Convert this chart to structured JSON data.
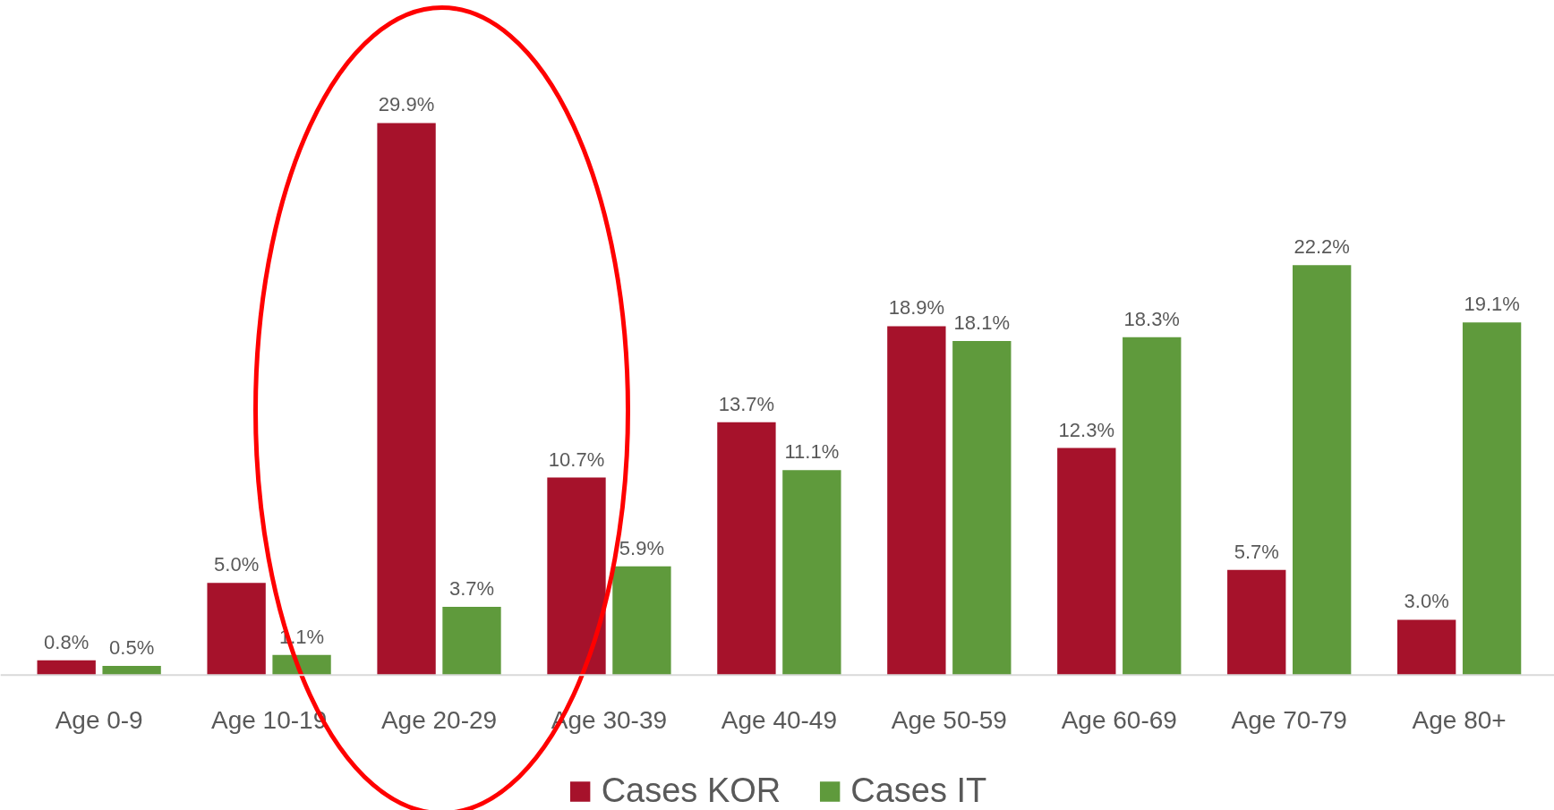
{
  "chart_data": {
    "type": "bar",
    "categories": [
      "Age 0-9",
      "Age 10-19",
      "Age 20-29",
      "Age 30-39",
      "Age 40-49",
      "Age 50-59",
      "Age 60-69",
      "Age 70-79",
      "Age 80+"
    ],
    "series": [
      {
        "name": "Cases KOR",
        "color": "#a6122b",
        "values": [
          0.8,
          5.0,
          29.9,
          10.7,
          13.7,
          18.9,
          12.3,
          5.7,
          3.0
        ],
        "value_labels": [
          "0.8%",
          "5.0%",
          "29.9%",
          "10.7%",
          "13.7%",
          "18.9%",
          "12.3%",
          "5.7%",
          "3.0%"
        ]
      },
      {
        "name": "Cases IT",
        "color": "#5f9a3c",
        "values": [
          0.5,
          1.1,
          3.7,
          5.9,
          11.1,
          18.1,
          18.3,
          22.2,
          19.1
        ],
        "value_labels": [
          "0.5%",
          "1.1%",
          "3.7%",
          "5.9%",
          "11.1%",
          "18.1%",
          "18.3%",
          "22.2%",
          "19.1%"
        ]
      }
    ],
    "legend": "bottom"
  }
}
